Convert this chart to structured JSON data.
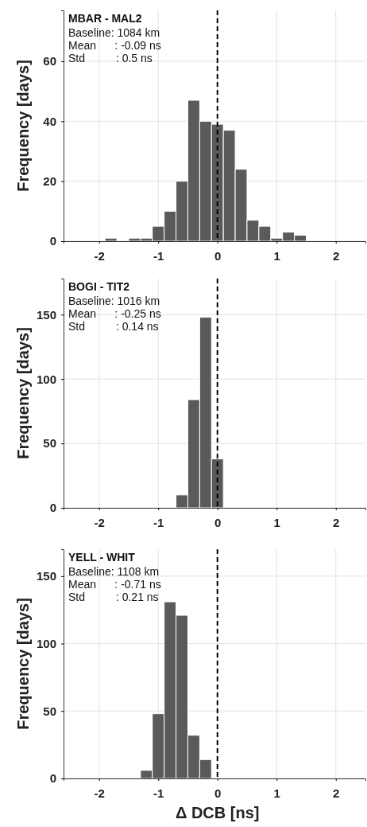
{
  "chart_data": [
    {
      "type": "histogram",
      "title": "MBAR - MAL2",
      "ylabel": "Frequency [days]",
      "annotations": [
        "Baseline: 1084 km",
        "Mean      : -0.09 ns",
        "Std          : 0.5 ns"
      ],
      "bins": [
        -1.9,
        -1.7,
        -1.5,
        -1.3,
        -1.1,
        -0.9,
        -0.7,
        -0.5,
        -0.3,
        -0.1,
        0.1,
        0.3,
        0.5,
        0.7,
        0.9,
        1.1,
        1.3,
        1.5
      ],
      "values": [
        1,
        0,
        1,
        1,
        5,
        10,
        20,
        47,
        40,
        39,
        37,
        24,
        7,
        5,
        1,
        3,
        2
      ],
      "color": "#5a5a5a",
      "xlim": [
        -2.6,
        2.5
      ],
      "xticks": [
        -2,
        -1,
        0,
        1,
        2
      ],
      "ylim": [
        0,
        77
      ],
      "yticks": [
        0,
        20,
        40,
        60
      ],
      "grid": true,
      "ref_lines": [
        {
          "axis": "x",
          "value": 0,
          "line_style": "dashed",
          "color": "#000000"
        }
      ]
    },
    {
      "type": "histogram",
      "title": "BOGI - TIT2",
      "ylabel": "Frequency [days]",
      "annotations": [
        "Baseline: 1016 km",
        "Mean      : -0.25 ns",
        "Std          : 0.14 ns"
      ],
      "bins": [
        -0.9,
        -0.7,
        -0.5,
        -0.3,
        -0.1,
        0.1,
        0.3,
        0.5
      ],
      "values": [
        0,
        10,
        84,
        148,
        38,
        0,
        0
      ],
      "color": "#5a5a5a",
      "xlim": [
        -2.6,
        2.5
      ],
      "xticks": [
        -2,
        -1,
        0,
        1,
        2
      ],
      "ylim": [
        0,
        178
      ],
      "yticks": [
        0,
        50,
        100,
        150
      ],
      "grid": true,
      "ref_lines": [
        {
          "axis": "x",
          "value": 0,
          "line_style": "dashed",
          "color": "#000000"
        }
      ]
    },
    {
      "type": "histogram",
      "title": "YELL - WHIT",
      "ylabel": "Frequency [days]",
      "xlabel": "Δ DCB [ns]",
      "annotations": [
        "Baseline: 1108 km",
        "Mean      : -0.71 ns",
        "Std          : 0.21 ns"
      ],
      "bins": [
        -1.3,
        -1.1,
        -0.9,
        -0.7,
        -0.5,
        -0.3,
        -0.1
      ],
      "values": [
        6,
        48,
        131,
        121,
        32,
        14
      ],
      "color": "#5a5a5a",
      "xlim": [
        -2.6,
        2.5
      ],
      "xticks": [
        -2,
        -1,
        0,
        1,
        2
      ],
      "ylim": [
        0,
        170
      ],
      "yticks": [
        0,
        50,
        100,
        150
      ],
      "grid": true,
      "ref_lines": [
        {
          "axis": "x",
          "value": 0,
          "line_style": "dashed",
          "color": "#000000"
        }
      ]
    }
  ]
}
